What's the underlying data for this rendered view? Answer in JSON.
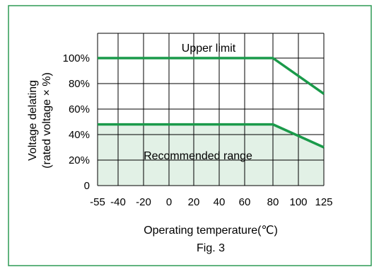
{
  "chart_data": {
    "type": "line",
    "x": [
      -55,
      80,
      125
    ],
    "series": [
      {
        "values": [
          100,
          100,
          72
        ]
      },
      {
        "values": [
          48,
          48,
          30
        ]
      }
    ],
    "recommended_range": {
      "upper": [
        48,
        48,
        30
      ],
      "lower": [
        0,
        0,
        0
      ]
    },
    "xlim": [
      -55,
      125
    ],
    "ylim": [
      0,
      100
    ],
    "grid": true,
    "x_ticks": [
      -55,
      -40,
      -20,
      0,
      20,
      40,
      60,
      80,
      100,
      125
    ],
    "x_tick_labels": [
      "-55",
      "-40",
      "-20",
      "0",
      "20",
      "40",
      "60",
      "80",
      "100",
      "125"
    ],
    "y_ticks": [
      0,
      20,
      40,
      60,
      80,
      100
    ],
    "y_tick_labels": [
      "0",
      "20%",
      "40%",
      "60%",
      "80%",
      "100%"
    ],
    "ylabel_line1": "Voltage delating",
    "ylabel_line2": "(rated voltage × %)",
    "xlabel": "Operating temperature(℃)",
    "figure_label": "Fig. 3",
    "annotations": {
      "upper_limit": "Upper limit",
      "recommended_range": "Recommended range"
    },
    "colors": {
      "line": "#1a9a4a",
      "fill": "#e2f1e6",
      "frame_border": "#2e9a55",
      "grid": "#000000"
    }
  }
}
